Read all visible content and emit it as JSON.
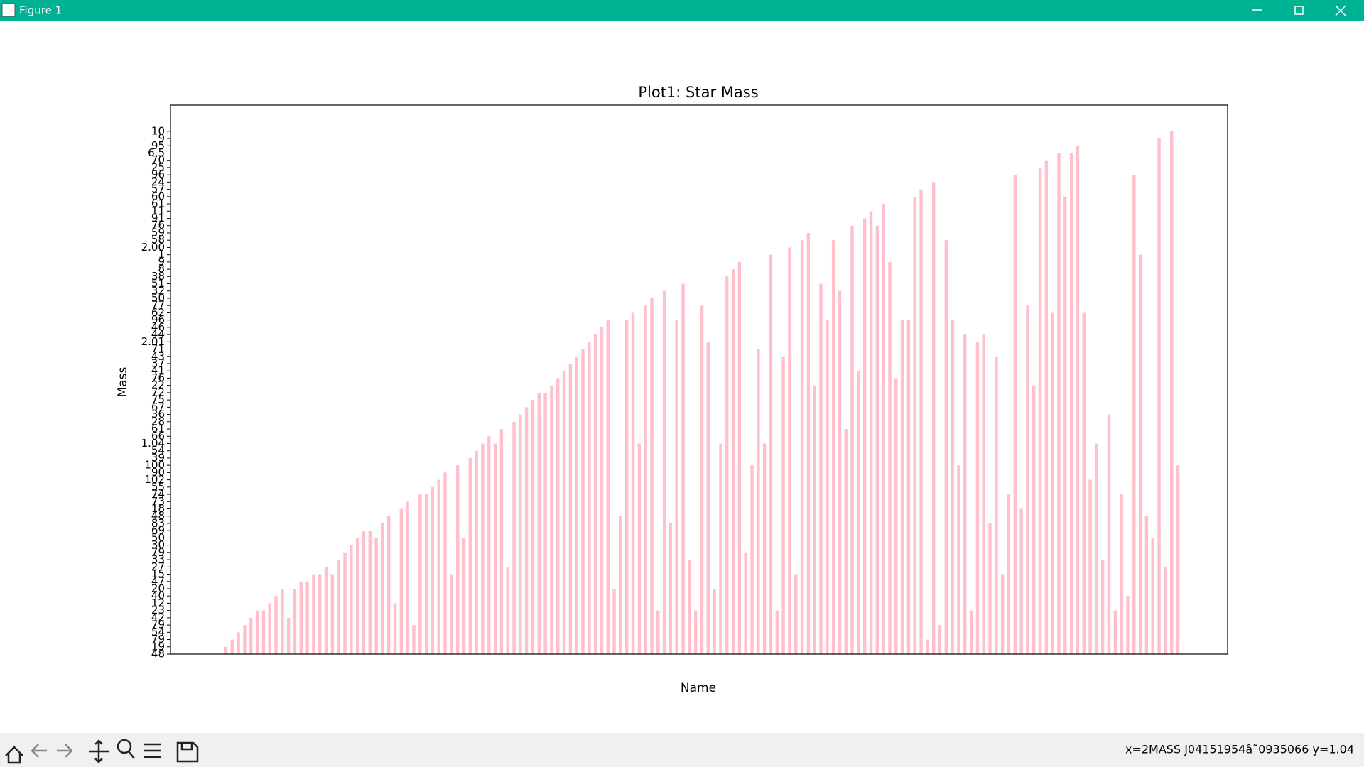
{
  "window": {
    "title": "Figure 1",
    "status": "x=2MASS J04151954â˜0935066 y=1.04"
  },
  "chart_data": {
    "type": "bar",
    "title": "Plot1: Star Mass",
    "x_label": "Name",
    "y_label": "Mass",
    "color": "#ffc0cb",
    "categories": [
      null,
      null,
      null,
      null,
      null,
      null,
      null,
      null,
      null,
      null,
      null,
      null,
      null,
      null,
      null,
      null,
      null,
      null,
      null,
      null,
      null,
      null,
      null,
      null,
      null,
      null,
      null,
      null,
      null,
      null,
      null,
      null,
      null,
      null,
      null,
      null,
      null,
      null,
      null,
      null,
      null,
      null,
      null,
      null,
      null,
      null,
      null,
      null,
      null,
      null,
      null,
      null,
      null,
      null,
      null,
      null,
      null,
      null,
      null,
      null,
      null,
      null,
      null,
      null,
      null,
      null,
      null,
      null,
      null,
      null,
      null,
      null,
      null,
      null,
      null,
      null,
      null,
      null,
      null,
      null,
      null,
      null,
      null,
      null,
      null,
      null,
      null,
      null,
      null,
      null,
      null,
      null,
      null,
      null,
      null,
      null,
      null,
      null,
      null,
      null,
      null,
      null,
      null,
      null,
      null,
      null,
      null,
      null,
      null,
      null,
      null,
      null,
      null,
      null,
      null,
      null,
      null,
      null,
      null,
      null,
      null,
      null,
      null,
      null,
      null,
      null,
      null,
      null,
      null,
      null,
      null,
      null,
      null,
      null,
      null,
      null,
      null,
      null,
      null,
      null,
      null,
      null,
      null,
      null,
      null,
      null,
      null,
      null,
      null,
      null,
      null,
      null,
      null
    ],
    "values": [
      1,
      2,
      3,
      4,
      5,
      6,
      6,
      7,
      8,
      9,
      5,
      9,
      10,
      10,
      11,
      11,
      12,
      11,
      13,
      14,
      15,
      16,
      17,
      17,
      16,
      18,
      19,
      7,
      20,
      21,
      4,
      22,
      22,
      23,
      24,
      25,
      11,
      26,
      16,
      27,
      28,
      29,
      30,
      29,
      31,
      12,
      32,
      33,
      34,
      35,
      36,
      36,
      37,
      38,
      39,
      40,
      41,
      42,
      43,
      44,
      45,
      46,
      9,
      19,
      46,
      47,
      29,
      48,
      49,
      6,
      50,
      18,
      46,
      51,
      13,
      6,
      48,
      43,
      9,
      29,
      52,
      53,
      54,
      14,
      26,
      42,
      29,
      55,
      6,
      41,
      56,
      11,
      57,
      58,
      37,
      51,
      46,
      57,
      50,
      31,
      59,
      39,
      60,
      61,
      59,
      62,
      54,
      38,
      46,
      46,
      63,
      64,
      2,
      65,
      4,
      57,
      46,
      26,
      44,
      6,
      43,
      44,
      18,
      41,
      11,
      22,
      66,
      20,
      48,
      37,
      67,
      68,
      47,
      69,
      63,
      69,
      70,
      47,
      24,
      29,
      13,
      33,
      6,
      22,
      8,
      66,
      55,
      19,
      16,
      71,
      12,
      72,
      26
    ],
    "ylim": [
      0,
      75.6
    ],
    "yticks": [
      {
        "value": 0,
        "label": "48"
      },
      {
        "value": 1,
        "label": "19"
      },
      {
        "value": 2,
        "label": "79"
      },
      {
        "value": 3,
        "label": "54"
      },
      {
        "value": 4,
        "label": "79"
      },
      {
        "value": 5,
        "label": "42"
      },
      {
        "value": 6,
        "label": "23"
      },
      {
        "value": 7,
        "label": "12"
      },
      {
        "value": 8,
        "label": "40"
      },
      {
        "value": 9,
        "label": "20"
      },
      {
        "value": 10,
        "label": "47"
      },
      {
        "value": 11,
        "label": "15"
      },
      {
        "value": 12,
        "label": "27"
      },
      {
        "value": 13,
        "label": "33"
      },
      {
        "value": 14,
        "label": "79"
      },
      {
        "value": 15,
        "label": "30"
      },
      {
        "value": 16,
        "label": "50"
      },
      {
        "value": 17,
        "label": "69"
      },
      {
        "value": 18,
        "label": "83"
      },
      {
        "value": 19,
        "label": "48"
      },
      {
        "value": 20,
        "label": "18"
      },
      {
        "value": 21,
        "label": "73"
      },
      {
        "value": 22,
        "label": "74"
      },
      {
        "value": 23,
        "label": "55"
      },
      {
        "value": 24,
        "label": "102"
      },
      {
        "value": 25,
        "label": "90"
      },
      {
        "value": 26,
        "label": "100"
      },
      {
        "value": 27,
        "label": "39"
      },
      {
        "value": 28,
        "label": "54"
      },
      {
        "value": 29,
        "label": "1.04"
      },
      {
        "value": 30,
        "label": "66"
      },
      {
        "value": 31,
        "label": "61"
      },
      {
        "value": 32,
        "label": "28"
      },
      {
        "value": 33,
        "label": "36"
      },
      {
        "value": 34,
        "label": "67"
      },
      {
        "value": 35,
        "label": "75"
      },
      {
        "value": 36,
        "label": "72"
      },
      {
        "value": 37,
        "label": "22"
      },
      {
        "value": 38,
        "label": "76"
      },
      {
        "value": 39,
        "label": "41"
      },
      {
        "value": 40,
        "label": "37"
      },
      {
        "value": 41,
        "label": "43"
      },
      {
        "value": 42,
        "label": "71"
      },
      {
        "value": 43,
        "label": "2.01"
      },
      {
        "value": 44,
        "label": "44"
      },
      {
        "value": 45,
        "label": "46"
      },
      {
        "value": 46,
        "label": "96"
      },
      {
        "value": 47,
        "label": "62"
      },
      {
        "value": 48,
        "label": "77"
      },
      {
        "value": 49,
        "label": "50"
      },
      {
        "value": 50,
        "label": "32"
      },
      {
        "value": 51,
        "label": "51"
      },
      {
        "value": 52,
        "label": "38"
      },
      {
        "value": 53,
        "label": "8"
      },
      {
        "value": 54,
        "label": "9"
      },
      {
        "value": 55,
        "label": "1"
      },
      {
        "value": 56,
        "label": "2.00"
      },
      {
        "value": 57,
        "label": "58"
      },
      {
        "value": 58,
        "label": "59"
      },
      {
        "value": 59,
        "label": "76"
      },
      {
        "value": 60,
        "label": "91"
      },
      {
        "value": 61,
        "label": "11"
      },
      {
        "value": 62,
        "label": "61"
      },
      {
        "value": 63,
        "label": "60"
      },
      {
        "value": 64,
        "label": "57"
      },
      {
        "value": 65,
        "label": "24"
      },
      {
        "value": 66,
        "label": "96"
      },
      {
        "value": 67,
        "label": "25"
      },
      {
        "value": 68,
        "label": "70"
      },
      {
        "value": 69,
        "label": "6.5"
      },
      {
        "value": 70,
        "label": "95"
      },
      {
        "value": 71,
        "label": "9"
      },
      {
        "value": 72,
        "label": "10"
      }
    ]
  }
}
